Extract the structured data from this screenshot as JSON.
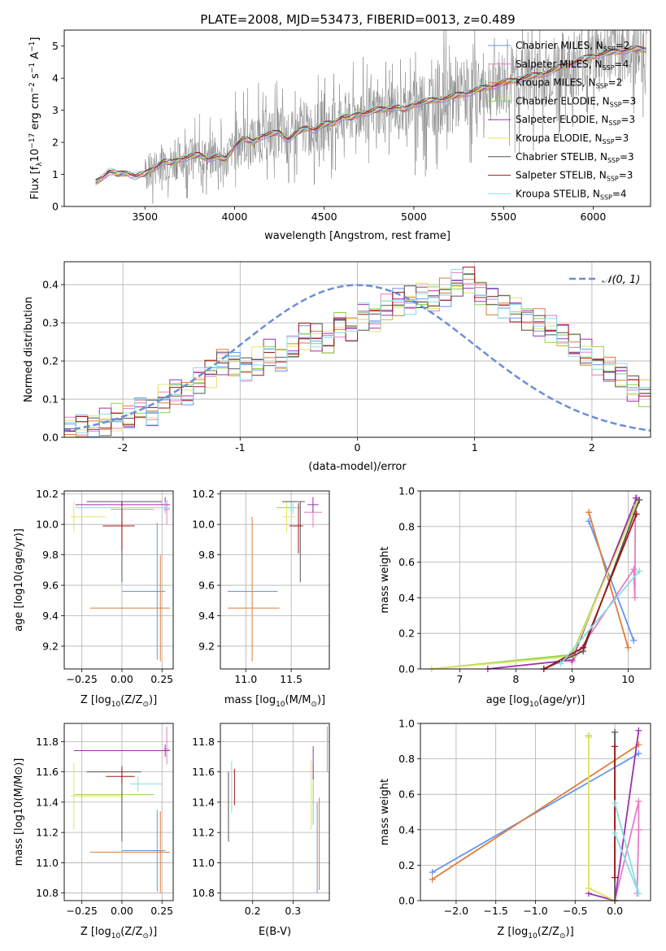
{
  "figure_title": "PLATE=2008, MJD=53473, FIBERID=0013, z=0.489",
  "models": [
    {
      "name": "Chabrier MILES",
      "nssp": "2",
      "color": "#6495ed"
    },
    {
      "name": "Salpeter MILES",
      "nssp": "4",
      "color": "#e87ac6"
    },
    {
      "name": "Kroupa MILES",
      "nssp": "2",
      "color": "#e07b39"
    },
    {
      "name": "Chabrier ELODIE",
      "nssp": "3",
      "color": "#8fd24a"
    },
    {
      "name": "Salpeter ELODIE",
      "nssp": "3",
      "color": "#9b30b0"
    },
    {
      "name": "Kroupa ELODIE",
      "nssp": "3",
      "color": "#e4e46a"
    },
    {
      "name": "Chabrier STELIB",
      "nssp": "3",
      "color": "#555555"
    },
    {
      "name": "Salpeter STELIB",
      "nssp": "3",
      "color": "#a31515"
    },
    {
      "name": "Kroupa STELIB",
      "nssp": "4",
      "color": "#88dde6"
    }
  ],
  "chart_data": [
    {
      "id": "spectrum",
      "type": "line",
      "title": "PLATE=2008, MJD=53473, FIBERID=0013, z=0.489",
      "xlabel": "wavelength [Angstrom, rest frame]",
      "ylabel_main": "Flux [f",
      "ylabel_sub": "λ",
      "ylabel_rest": "10",
      "ylabel_exp": "−17",
      "ylabel_units": " erg cm",
      "xlim": [
        3050,
        6320
      ],
      "ylim": [
        0,
        5.5
      ],
      "xticks": [
        3500,
        4000,
        4500,
        5000,
        5500,
        6000
      ],
      "yticks": [
        0,
        1,
        2,
        3,
        4,
        5
      ],
      "data_color": "#808080",
      "model_x": [
        3225,
        3260,
        3300,
        3350,
        3400,
        3450,
        3500,
        3550,
        3600,
        3650,
        3700,
        3750,
        3800,
        3850,
        3900,
        3950,
        4000,
        4050,
        4100,
        4150,
        4200,
        4250,
        4300,
        4350,
        4400,
        4450,
        4500,
        4550,
        4600,
        4650,
        4700,
        4750,
        4800,
        4850,
        4900,
        4950,
        5000,
        5100,
        5200,
        5300,
        5400,
        5500,
        5600,
        5700,
        5800,
        5900,
        6000,
        6100,
        6200
      ],
      "model_y": [
        0.75,
        0.9,
        1.1,
        1.0,
        1.05,
        0.95,
        1.0,
        1.2,
        1.4,
        1.35,
        1.5,
        1.55,
        1.6,
        1.5,
        1.55,
        1.45,
        1.9,
        2.1,
        2.0,
        2.2,
        2.25,
        2.3,
        2.1,
        2.3,
        2.45,
        2.4,
        2.55,
        2.6,
        2.8,
        2.75,
        2.9,
        2.95,
        3.0,
        3.05,
        3.1,
        3.0,
        3.2,
        3.3,
        3.4,
        3.55,
        3.7,
        3.85,
        4.0,
        4.1,
        4.3,
        4.5,
        4.7,
        4.8,
        4.9
      ]
    },
    {
      "id": "residual-histogram",
      "type": "step",
      "xlabel": "(data-model)/error",
      "ylabel": "Normed distribution",
      "xlim": [
        -2.5,
        2.5
      ],
      "ylim": [
        0,
        0.46
      ],
      "xticks": [
        -2,
        -1,
        0,
        1,
        2
      ],
      "yticks": [
        0.0,
        0.1,
        0.2,
        0.3,
        0.4
      ],
      "gaussian_label": "𝒩(0, 1)",
      "gaussian_color": "#6a8fd6",
      "bin_start": -2.5,
      "bin_width": 0.1,
      "base_heights": [
        0.02,
        0.03,
        0.03,
        0.04,
        0.05,
        0.05,
        0.07,
        0.06,
        0.1,
        0.12,
        0.12,
        0.15,
        0.17,
        0.2,
        0.19,
        0.18,
        0.2,
        0.22,
        0.2,
        0.23,
        0.26,
        0.26,
        0.25,
        0.3,
        0.29,
        0.32,
        0.31,
        0.34,
        0.35,
        0.36,
        0.37,
        0.36,
        0.38,
        0.4,
        0.41,
        0.38,
        0.36,
        0.35,
        0.34,
        0.31,
        0.3,
        0.28,
        0.26,
        0.24,
        0.22,
        0.2,
        0.18,
        0.16,
        0.13,
        0.12
      ]
    },
    {
      "id": "age-vs-z",
      "type": "errorbar",
      "xlabel_pre": "Z [log",
      "xlabel_sub": "10",
      "xlabel_post": "(Z/Z",
      "xlabel_sun": "⊙",
      "xlabel_end": ")]",
      "ylabel": "age  [log10(age/yr)]",
      "xlim": [
        -0.36,
        0.32
      ],
      "ylim": [
        9.05,
        10.22
      ],
      "xticks": [
        -0.25,
        0.0,
        0.25
      ],
      "xticklabels": [
        "−0.25",
        "0.00",
        "0.25"
      ],
      "yticks": [
        9.2,
        9.4,
        9.6,
        9.8,
        10.0,
        10.2
      ],
      "points": [
        {
          "model": 0,
          "x": 0.22,
          "y": 9.56,
          "xerr": [
            0.22,
            0.05
          ],
          "yerr": [
            0.45,
            0.45
          ]
        },
        {
          "model": 2,
          "x": 0.24,
          "y": 9.45,
          "xerr": [
            0.44,
            0.06
          ],
          "yerr": [
            0.35,
            0.35
          ]
        },
        {
          "model": 1,
          "x": 0.28,
          "y": 10.1,
          "xerr": [
            0.02,
            0.02
          ],
          "yerr": [
            0.1,
            0.06
          ]
        },
        {
          "model": 3,
          "x": 0.0,
          "y": 10.1,
          "xerr": [
            0.07,
            0.2
          ],
          "yerr": [
            0.05,
            0.05
          ]
        },
        {
          "model": 4,
          "x": 0.27,
          "y": 10.13,
          "xerr": [
            0.56,
            0.03
          ],
          "yerr": [
            0.05,
            0.05
          ]
        },
        {
          "model": 5,
          "x": -0.3,
          "y": 10.05,
          "xerr": [
            0.02,
            0.2
          ],
          "yerr": [
            0.1,
            0.1
          ]
        },
        {
          "model": 6,
          "x": 0.0,
          "y": 10.15,
          "xerr": [
            0.22,
            0.25
          ],
          "yerr": [
            0.53,
            0.0
          ]
        },
        {
          "model": 7,
          "x": 0.0,
          "y": 9.99,
          "xerr": [
            0.12,
            0.08
          ],
          "yerr": [
            0.16,
            0.16
          ]
        },
        {
          "model": 8,
          "x": 0.27,
          "y": 10.11,
          "xerr": [
            0.56,
            0.03
          ],
          "yerr": [
            0.04,
            0.04
          ]
        }
      ]
    },
    {
      "id": "age-vs-mass",
      "type": "errorbar",
      "xlabel_pre": "mass [log",
      "xlabel_sub": "10",
      "xlabel_post": "(M/M",
      "xlabel_sun": "⊙",
      "xlabel_end": ")]",
      "xlim": [
        10.72,
        11.92
      ],
      "ylim": [
        9.05,
        10.22
      ],
      "xticks": [
        11.0,
        11.5
      ],
      "xticklabels": [
        "11.0",
        "11.5"
      ],
      "yticks": [
        9.2,
        9.4,
        9.6,
        9.8,
        10.0,
        10.2
      ],
      "points": [
        {
          "model": 0,
          "x": 11.1,
          "y": 9.56,
          "xerr": [
            0.3,
            0.25
          ],
          "yerr": [
            0.0,
            0.0
          ]
        },
        {
          "model": 2,
          "x": 11.07,
          "y": 9.45,
          "xerr": [
            0.27,
            0.3
          ],
          "yerr": [
            0.35,
            0.6
          ]
        },
        {
          "model": 1,
          "x": 11.74,
          "y": 10.08,
          "xerr": [
            0.1,
            0.1
          ],
          "yerr": [
            0.1,
            0.05
          ]
        },
        {
          "model": 3,
          "x": 11.5,
          "y": 10.11,
          "xerr": [
            0.16,
            0.1
          ],
          "yerr": [
            0.03,
            0.03
          ]
        },
        {
          "model": 4,
          "x": 11.74,
          "y": 10.13,
          "xerr": [
            0.06,
            0.06
          ],
          "yerr": [
            0.05,
            0.05
          ]
        },
        {
          "model": 5,
          "x": 11.45,
          "y": 10.05,
          "xerr": [
            0.05,
            0.1
          ],
          "yerr": [
            0.1,
            0.1
          ]
        },
        {
          "model": 6,
          "x": 11.6,
          "y": 10.15,
          "xerr": [
            0.2,
            0.05
          ],
          "yerr": [
            0.53,
            0.0
          ]
        },
        {
          "model": 7,
          "x": 11.58,
          "y": 9.99,
          "xerr": [
            0.1,
            0.05
          ],
          "yerr": [
            0.18,
            0.15
          ]
        },
        {
          "model": 8,
          "x": 11.52,
          "y": 10.11,
          "xerr": [
            0.06,
            0.06
          ],
          "yerr": [
            0.04,
            0.04
          ]
        }
      ]
    },
    {
      "id": "mass-weight-vs-age",
      "type": "line",
      "xlabel_pre": "age  [log",
      "xlabel_sub": "10",
      "xlabel_post": "(age/yr)]",
      "ylabel": "mass weight",
      "xlim": [
        6.3,
        10.4
      ],
      "ylim": [
        0,
        1.0
      ],
      "xticks": [
        7,
        8,
        9,
        10
      ],
      "yticks": [
        0.0,
        0.2,
        0.4,
        0.6,
        0.8,
        1.0
      ],
      "yticklabels": [
        "0.0",
        "0.2",
        "0.4",
        "0.6",
        "0.8",
        "1.0"
      ],
      "series": [
        {
          "model": 0,
          "x": [
            9.3,
            10.1
          ],
          "y": [
            0.83,
            0.16
          ]
        },
        {
          "model": 2,
          "x": [
            9.3,
            10.0
          ],
          "y": [
            0.88,
            0.12
          ]
        },
        {
          "model": 1,
          "x": [
            9.0,
            10.1,
            10.12,
            10.13
          ],
          "y": [
            0.04,
            0.56,
            0.4,
            0.96
          ]
        },
        {
          "model": 3,
          "x": [
            6.5,
            9.0,
            10.15
          ],
          "y": [
            0.0,
            0.08,
            0.93
          ]
        },
        {
          "model": 4,
          "x": [
            7.5,
            9.0,
            10.15
          ],
          "y": [
            0.0,
            0.05,
            0.96
          ]
        },
        {
          "model": 5,
          "x": [
            6.5,
            9.0,
            10.15
          ],
          "y": [
            0.0,
            0.07,
            0.92
          ]
        },
        {
          "model": 6,
          "x": [
            8.5,
            9.2,
            10.2
          ],
          "y": [
            0.0,
            0.1,
            0.95
          ]
        },
        {
          "model": 7,
          "x": [
            8.5,
            9.2,
            10.15
          ],
          "y": [
            0.0,
            0.12,
            0.87
          ]
        },
        {
          "model": 8,
          "x": [
            8.8,
            10.2
          ],
          "y": [
            0.03,
            0.55
          ]
        }
      ]
    },
    {
      "id": "mass-vs-z",
      "type": "errorbar",
      "xlabel_pre": "Z [log",
      "xlabel_sub": "10",
      "xlabel_post": "(Z/Z",
      "xlabel_sun": "⊙",
      "xlabel_end": ")]",
      "ylabel": "mass [log10(M/M⊙)]",
      "xlim": [
        -0.36,
        0.32
      ],
      "ylim": [
        10.75,
        11.92
      ],
      "xticks": [
        -0.25,
        0.0,
        0.25
      ],
      "xticklabels": [
        "−0.25",
        "0.00",
        "0.25"
      ],
      "yticks": [
        10.8,
        11.0,
        11.2,
        11.4,
        11.6,
        11.8
      ],
      "points": [
        {
          "model": 0,
          "x": 0.22,
          "y": 11.08,
          "xerr": [
            0.22,
            0.05
          ],
          "yerr": [
            0.27,
            0.27
          ]
        },
        {
          "model": 2,
          "x": 0.24,
          "y": 11.07,
          "xerr": [
            0.44,
            0.06
          ],
          "yerr": [
            0.27,
            0.27
          ]
        },
        {
          "model": 1,
          "x": 0.28,
          "y": 11.75,
          "xerr": [
            0.02,
            0.02
          ],
          "yerr": [
            0.1,
            0.15
          ]
        },
        {
          "model": 3,
          "x": 0.0,
          "y": 11.45,
          "xerr": [
            0.3,
            0.2
          ],
          "yerr": [
            0.05,
            0.05
          ]
        },
        {
          "model": 4,
          "x": 0.27,
          "y": 11.74,
          "xerr": [
            0.57,
            0.03
          ],
          "yerr": [
            0.04,
            0.04
          ]
        },
        {
          "model": 5,
          "x": -0.3,
          "y": 11.44,
          "xerr": [
            0.02,
            0.3
          ],
          "yerr": [
            0.22,
            0.22
          ]
        },
        {
          "model": 6,
          "x": 0.0,
          "y": 11.6,
          "xerr": [
            0.22,
            0.12
          ],
          "yerr": [
            0.46,
            0.04
          ]
        },
        {
          "model": 7,
          "x": 0.0,
          "y": 11.57,
          "xerr": [
            0.1,
            0.08
          ],
          "yerr": [
            0.05,
            0.05
          ]
        },
        {
          "model": 8,
          "x": 0.1,
          "y": 11.52,
          "xerr": [
            0.05,
            0.15
          ],
          "yerr": [
            0.05,
            0.05
          ]
        }
      ]
    },
    {
      "id": "mass-vs-ebv",
      "type": "errorbar",
      "xlabel": "E(B-V)",
      "xlim": [
        0.12,
        0.39
      ],
      "ylim": [
        10.75,
        11.92
      ],
      "xticks": [
        0.2,
        0.3
      ],
      "xticklabels": [
        "0.2",
        "0.3"
      ],
      "yticks": [
        10.8,
        11.0,
        11.2,
        11.4,
        11.6,
        11.8
      ],
      "points": [
        {
          "model": 0,
          "x": 0.36,
          "y": 11.2,
          "xerr": [
            0.0,
            0.0
          ],
          "yerr": [
            0.4,
            0.2
          ]
        },
        {
          "model": 2,
          "x": 0.365,
          "y": 11.2,
          "xerr": [
            0.0,
            0.0
          ],
          "yerr": [
            0.38,
            0.23
          ]
        },
        {
          "model": 1,
          "x": 0.385,
          "y": 11.75,
          "xerr": [
            0.0,
            0.0
          ],
          "yerr": [
            0.15,
            0.15
          ]
        },
        {
          "model": 3,
          "x": 0.35,
          "y": 11.45,
          "xerr": [
            0.0,
            0.0
          ],
          "yerr": [
            0.2,
            0.2
          ]
        },
        {
          "model": 4,
          "x": 0.35,
          "y": 11.65,
          "xerr": [
            0.0,
            0.0
          ],
          "yerr": [
            0.1,
            0.12
          ]
        },
        {
          "model": 5,
          "x": 0.345,
          "y": 11.45,
          "xerr": [
            0.0,
            0.0
          ],
          "yerr": [
            0.23,
            0.23
          ]
        },
        {
          "model": 6,
          "x": 0.14,
          "y": 11.4,
          "xerr": [
            0.0,
            0.0
          ],
          "yerr": [
            0.26,
            0.2
          ]
        },
        {
          "model": 7,
          "x": 0.155,
          "y": 11.5,
          "xerr": [
            0.0,
            0.0
          ],
          "yerr": [
            0.12,
            0.12
          ]
        },
        {
          "model": 8,
          "x": 0.148,
          "y": 11.5,
          "xerr": [
            0.0,
            0.0
          ],
          "yerr": [
            0.17,
            0.17
          ]
        }
      ]
    },
    {
      "id": "mass-weight-vs-z",
      "type": "line",
      "xlabel_pre": "Z [log",
      "xlabel_sub": "10",
      "xlabel_post": "(Z/Z",
      "xlabel_sun": "⊙",
      "xlabel_end": ")]",
      "ylabel": "mass weight",
      "xlim": [
        -2.45,
        0.45
      ],
      "ylim": [
        0,
        1.0
      ],
      "xticks": [
        -2.0,
        -1.5,
        -1.0,
        -0.5,
        0.0
      ],
      "xticklabels": [
        "−2.0",
        "−1.5",
        "−1.0",
        "−0.5",
        "0.0"
      ],
      "yticks": [
        0.0,
        0.2,
        0.4,
        0.6,
        0.8,
        1.0
      ],
      "yticklabels": [
        "0.0",
        "0.2",
        "0.4",
        "0.6",
        "0.8",
        "1.0"
      ],
      "series": [
        {
          "model": 0,
          "x": [
            -2.3,
            0.3
          ],
          "y": [
            0.16,
            0.83
          ]
        },
        {
          "model": 2,
          "x": [
            -2.3,
            0.3
          ],
          "y": [
            0.12,
            0.88
          ]
        },
        {
          "model": 1,
          "x": [
            0.0,
            0.3,
            0.3,
            0.28
          ],
          "y": [
            0.0,
            0.56,
            0.4,
            0.04
          ]
        },
        {
          "model": 3,
          "x": [
            -0.33,
            -0.33,
            0.0
          ],
          "y": [
            0.93,
            0.07,
            0.0
          ]
        },
        {
          "model": 4,
          "x": [
            -0.33,
            0.0,
            0.3
          ],
          "y": [
            0.04,
            0.0,
            0.96
          ]
        },
        {
          "model": 5,
          "x": [
            -0.33,
            -0.33,
            0.0
          ],
          "y": [
            0.92,
            0.07,
            0.0
          ]
        },
        {
          "model": 6,
          "x": [
            0.0,
            0.0
          ],
          "y": [
            0.95,
            0.0
          ]
        },
        {
          "model": 7,
          "x": [
            0.0,
            0.0
          ],
          "y": [
            0.87,
            0.13
          ]
        },
        {
          "model": 8,
          "x": [
            0.0,
            0.3,
            0.0
          ],
          "y": [
            0.55,
            0.04,
            0.38
          ]
        }
      ]
    }
  ]
}
